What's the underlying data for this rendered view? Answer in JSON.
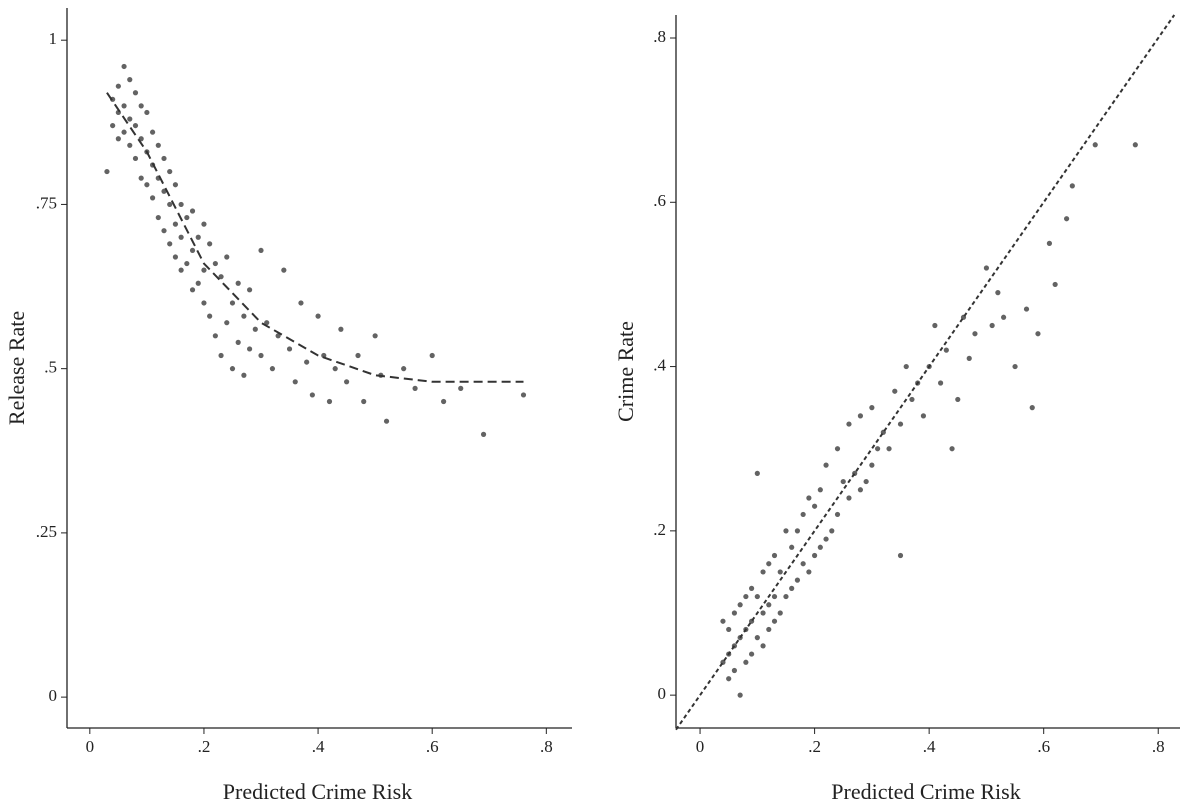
{
  "chart_data": [
    {
      "type": "scatter",
      "x_label": "Predicted Crime Risk",
      "y_label": "Release Rate",
      "color": "#3c3c3c",
      "xlim": [
        -0.04,
        0.845
      ],
      "ylim": [
        -0.047,
        1.049
      ],
      "xticks": [
        0,
        {
          "value": 0.2,
          "label": ".2"
        },
        {
          "value": 0.4,
          "label": ".4"
        },
        {
          "value": 0.6,
          "label": ".6"
        },
        {
          "value": 0.8,
          "label": ".8"
        }
      ],
      "yticks": [
        0,
        {
          "value": 0.25,
          "label": ".25"
        },
        {
          "value": 0.5,
          "label": ".5"
        },
        {
          "value": 0.75,
          "label": ".75"
        },
        1
      ],
      "x": [
        0.03,
        0.04,
        0.04,
        0.05,
        0.05,
        0.05,
        0.06,
        0.06,
        0.06,
        0.07,
        0.07,
        0.07,
        0.08,
        0.08,
        0.08,
        0.09,
        0.09,
        0.09,
        0.1,
        0.1,
        0.1,
        0.11,
        0.11,
        0.11,
        0.12,
        0.12,
        0.12,
        0.13,
        0.13,
        0.13,
        0.14,
        0.14,
        0.14,
        0.15,
        0.15,
        0.15,
        0.16,
        0.16,
        0.16,
        0.17,
        0.17,
        0.18,
        0.18,
        0.18,
        0.19,
        0.19,
        0.2,
        0.2,
        0.2,
        0.21,
        0.21,
        0.22,
        0.22,
        0.23,
        0.23,
        0.24,
        0.24,
        0.25,
        0.25,
        0.26,
        0.26,
        0.27,
        0.27,
        0.28,
        0.28,
        0.29,
        0.3,
        0.3,
        0.31,
        0.32,
        0.33,
        0.34,
        0.35,
        0.36,
        0.37,
        0.38,
        0.39,
        0.4,
        0.41,
        0.42,
        0.43,
        0.44,
        0.45,
        0.47,
        0.48,
        0.5,
        0.51,
        0.52,
        0.55,
        0.57,
        0.6,
        0.62,
        0.65,
        0.69,
        0.76
      ],
      "values": [
        0.8,
        0.91,
        0.87,
        0.93,
        0.89,
        0.85,
        0.96,
        0.9,
        0.86,
        0.94,
        0.88,
        0.84,
        0.92,
        0.87,
        0.82,
        0.9,
        0.85,
        0.79,
        0.89,
        0.83,
        0.78,
        0.86,
        0.81,
        0.76,
        0.84,
        0.79,
        0.73,
        0.82,
        0.77,
        0.71,
        0.8,
        0.75,
        0.69,
        0.78,
        0.72,
        0.67,
        0.75,
        0.7,
        0.65,
        0.73,
        0.66,
        0.74,
        0.68,
        0.62,
        0.7,
        0.63,
        0.72,
        0.65,
        0.6,
        0.69,
        0.58,
        0.66,
        0.55,
        0.64,
        0.52,
        0.67,
        0.57,
        0.6,
        0.5,
        0.63,
        0.54,
        0.58,
        0.49,
        0.62,
        0.53,
        0.56,
        0.68,
        0.52,
        0.57,
        0.5,
        0.55,
        0.65,
        0.53,
        0.48,
        0.6,
        0.51,
        0.46,
        0.58,
        0.52,
        0.45,
        0.5,
        0.56,
        0.48,
        0.52,
        0.45,
        0.55,
        0.49,
        0.42,
        0.5,
        0.47,
        0.52,
        0.45,
        0.47,
        0.4,
        0.46
      ],
      "fit": {
        "x": [
          0.03,
          0.1,
          0.2,
          0.3,
          0.4,
          0.5,
          0.6,
          0.76
        ],
        "values": [
          0.92,
          0.83,
          0.66,
          0.57,
          0.52,
          0.49,
          0.48,
          0.48
        ]
      }
    },
    {
      "type": "scatter",
      "x_label": "Predicted Crime Risk",
      "y_label": "Crime Rate",
      "color": "#3c3c3c",
      "xlim": [
        -0.042,
        0.838
      ],
      "ylim": [
        -0.04,
        0.828
      ],
      "xticks": [
        0,
        {
          "value": 0.2,
          "label": ".2"
        },
        {
          "value": 0.4,
          "label": ".4"
        },
        {
          "value": 0.6,
          "label": ".6"
        },
        {
          "value": 0.8,
          "label": ".8"
        }
      ],
      "yticks": [
        0,
        {
          "value": 0.2,
          "label": ".2"
        },
        {
          "value": 0.4,
          "label": ".4"
        },
        {
          "value": 0.6,
          "label": ".6"
        },
        {
          "value": 0.8,
          "label": ".8"
        }
      ],
      "x": [
        0.04,
        0.04,
        0.05,
        0.05,
        0.05,
        0.06,
        0.06,
        0.06,
        0.07,
        0.07,
        0.07,
        0.08,
        0.08,
        0.08,
        0.09,
        0.09,
        0.09,
        0.1,
        0.1,
        0.1,
        0.11,
        0.11,
        0.11,
        0.12,
        0.12,
        0.12,
        0.13,
        0.13,
        0.13,
        0.14,
        0.14,
        0.15,
        0.15,
        0.16,
        0.16,
        0.17,
        0.17,
        0.18,
        0.18,
        0.19,
        0.19,
        0.2,
        0.2,
        0.21,
        0.21,
        0.22,
        0.22,
        0.23,
        0.24,
        0.24,
        0.25,
        0.26,
        0.26,
        0.27,
        0.28,
        0.28,
        0.29,
        0.3,
        0.3,
        0.31,
        0.32,
        0.33,
        0.34,
        0.35,
        0.35,
        0.36,
        0.37,
        0.38,
        0.39,
        0.4,
        0.41,
        0.42,
        0.43,
        0.44,
        0.45,
        0.46,
        0.47,
        0.48,
        0.5,
        0.51,
        0.52,
        0.53,
        0.55,
        0.57,
        0.58,
        0.59,
        0.61,
        0.62,
        0.64,
        0.65,
        0.69,
        0.76
      ],
      "values": [
        0.09,
        0.04,
        0.08,
        0.05,
        0.02,
        0.1,
        0.06,
        0.03,
        0.11,
        0.07,
        0.0,
        0.12,
        0.08,
        0.04,
        0.13,
        0.09,
        0.05,
        0.27,
        0.12,
        0.07,
        0.15,
        0.1,
        0.06,
        0.16,
        0.11,
        0.08,
        0.17,
        0.12,
        0.09,
        0.15,
        0.1,
        0.2,
        0.12,
        0.18,
        0.13,
        0.2,
        0.14,
        0.22,
        0.16,
        0.24,
        0.15,
        0.23,
        0.17,
        0.25,
        0.18,
        0.28,
        0.19,
        0.2,
        0.3,
        0.22,
        0.26,
        0.33,
        0.24,
        0.27,
        0.34,
        0.25,
        0.26,
        0.35,
        0.28,
        0.3,
        0.32,
        0.3,
        0.37,
        0.17,
        0.33,
        0.4,
        0.36,
        0.38,
        0.34,
        0.4,
        0.45,
        0.38,
        0.42,
        0.3,
        0.36,
        0.46,
        0.41,
        0.44,
        0.52,
        0.45,
        0.49,
        0.46,
        0.4,
        0.47,
        0.35,
        0.44,
        0.55,
        0.5,
        0.58,
        0.62,
        0.67,
        0.67
      ],
      "fit": {
        "x": [
          -0.042,
          0.828
        ],
        "values": [
          -0.042,
          0.828
        ]
      }
    }
  ]
}
